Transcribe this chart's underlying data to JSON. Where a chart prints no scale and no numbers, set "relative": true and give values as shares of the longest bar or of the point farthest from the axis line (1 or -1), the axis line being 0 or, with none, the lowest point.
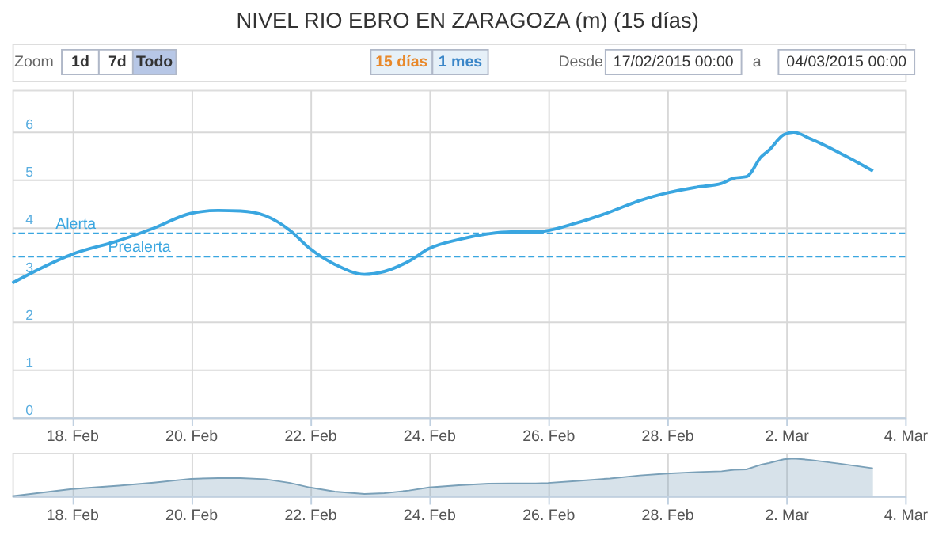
{
  "chart_data": [
    {
      "type": "line",
      "title": "NIVEL RIO EBRO EN ZARAGOZA (m) (15 días)",
      "annotations": [
        "Zoom",
        "1d",
        "7d",
        "Todo",
        "15 días",
        "1 mes",
        "Desde",
        "17/02/2015 00:00",
        "a",
        "04/03/2015 00:00"
      ],
      "x": [
        "2015-02-17T00:00",
        "2015-02-18T00:00",
        "2015-02-18T19:00",
        "2015-02-19T09:00",
        "2015-02-20T00:00",
        "2015-02-20T11:00",
        "2015-02-20T20:00",
        "2015-02-21T06:00",
        "2015-02-21T16:00",
        "2015-02-22T00:00",
        "2015-02-22T10:00",
        "2015-02-22T22:00",
        "2015-02-23T06:00",
        "2015-02-23T16:00",
        "2015-02-24T00:00",
        "2015-02-24T12:00",
        "2015-02-25T00:00",
        "2015-02-25T09:00",
        "2015-02-25T19:00",
        "2015-02-26T00:00",
        "2015-02-26T11:00",
        "2015-02-27T01:00",
        "2015-02-27T13:00",
        "2015-02-28T00:00",
        "2015-02-28T12:00",
        "2015-02-28T22:00",
        "2015-03-01T03:00",
        "2015-03-01T08:00",
        "2015-03-01T14:00",
        "2015-03-01T17:00",
        "2015-03-01T23:00",
        "2015-03-02T03:00",
        "2015-03-02T10:00",
        "2015-03-02T23:00",
        "2015-03-03T11:00"
      ],
      "series": [
        {
          "color": "#3aa6e0",
          "values": [
            2.82,
            3.42,
            3.71,
            3.97,
            4.28,
            4.34,
            4.33,
            4.23,
            3.92,
            3.54,
            3.21,
            3.0,
            3.06,
            3.28,
            3.54,
            3.73,
            3.85,
            3.89,
            3.89,
            3.92,
            4.07,
            4.31,
            4.55,
            4.71,
            4.83,
            4.91,
            5.02,
            5.05,
            5.47,
            5.6,
            5.93,
            5.98,
            5.84,
            5.51,
            5.17
          ]
        }
      ],
      "xlim": [
        "2015-02-17T00:00",
        "2015-03-04T00:00"
      ],
      "xticks": [
        {
          "value": "2015-02-18",
          "label": "18. Feb"
        },
        {
          "value": "2015-02-20",
          "label": "20. Feb"
        },
        {
          "value": "2015-02-22",
          "label": "22. Feb"
        },
        {
          "value": "2015-02-24",
          "label": "24. Feb"
        },
        {
          "value": "2015-02-26",
          "label": "26. Feb"
        },
        {
          "value": "2015-02-28",
          "label": "28. Feb"
        },
        {
          "value": "2015-03-02",
          "label": "2. Mar"
        },
        {
          "value": "2015-03-04",
          "label": "4. Mar"
        }
      ],
      "ylim": [
        0,
        6.87
      ],
      "yticks": [
        0,
        1,
        2,
        3,
        4,
        5,
        6
      ],
      "ref_lines": [
        {
          "axis": "y",
          "value": 3.86,
          "label": "Alerta",
          "color": "#3aa6e0",
          "line_style": "dashed"
        },
        {
          "axis": "y",
          "value": 3.37,
          "label": "Prealerta",
          "color": "#3aa6e0",
          "line_style": "dashed"
        }
      ],
      "grid": true
    },
    {
      "type": "area",
      "relative": true,
      "x": [
        "2015-02-17T00:00",
        "2015-02-18T00:00",
        "2015-02-18T19:00",
        "2015-02-19T09:00",
        "2015-02-20T00:00",
        "2015-02-20T11:00",
        "2015-02-20T20:00",
        "2015-02-21T06:00",
        "2015-02-21T16:00",
        "2015-02-22T00:00",
        "2015-02-22T10:00",
        "2015-02-22T22:00",
        "2015-02-23T06:00",
        "2015-02-23T16:00",
        "2015-02-24T00:00",
        "2015-02-24T12:00",
        "2015-02-25T00:00",
        "2015-02-25T09:00",
        "2015-02-25T19:00",
        "2015-02-26T00:00",
        "2015-02-26T11:00",
        "2015-02-27T01:00",
        "2015-02-27T13:00",
        "2015-02-28T00:00",
        "2015-02-28T12:00",
        "2015-02-28T22:00",
        "2015-03-01T03:00",
        "2015-03-01T08:00",
        "2015-03-01T14:00",
        "2015-03-01T17:00",
        "2015-03-01T23:00",
        "2015-03-02T03:00",
        "2015-03-02T10:00",
        "2015-03-02T23:00",
        "2015-03-03T11:00"
      ],
      "series": [
        {
          "color": "#7aa0b8",
          "values": [
            0,
            0.19,
            0.28,
            0.36,
            0.46,
            0.48,
            0.48,
            0.45,
            0.35,
            0.23,
            0.12,
            0.06,
            0.08,
            0.15,
            0.23,
            0.29,
            0.33,
            0.34,
            0.34,
            0.35,
            0.4,
            0.47,
            0.55,
            0.6,
            0.64,
            0.66,
            0.7,
            0.71,
            0.84,
            0.88,
            0.98,
            1,
            0.96,
            0.85,
            0.74
          ]
        }
      ],
      "xlim": [
        "2015-02-17T00:00",
        "2015-03-04T00:00"
      ],
      "xticks": [
        {
          "value": "2015-02-18",
          "label": "18. Feb"
        },
        {
          "value": "2015-02-20",
          "label": "20. Feb"
        },
        {
          "value": "2015-02-22",
          "label": "22. Feb"
        },
        {
          "value": "2015-02-24",
          "label": "24. Feb"
        },
        {
          "value": "2015-02-26",
          "label": "26. Feb"
        },
        {
          "value": "2015-02-28",
          "label": "28. Feb"
        },
        {
          "value": "2015-03-02",
          "label": "2. Mar"
        },
        {
          "value": "2015-03-04",
          "label": "4. Mar"
        }
      ],
      "tick_labels": "x",
      "grid": "x"
    }
  ]
}
